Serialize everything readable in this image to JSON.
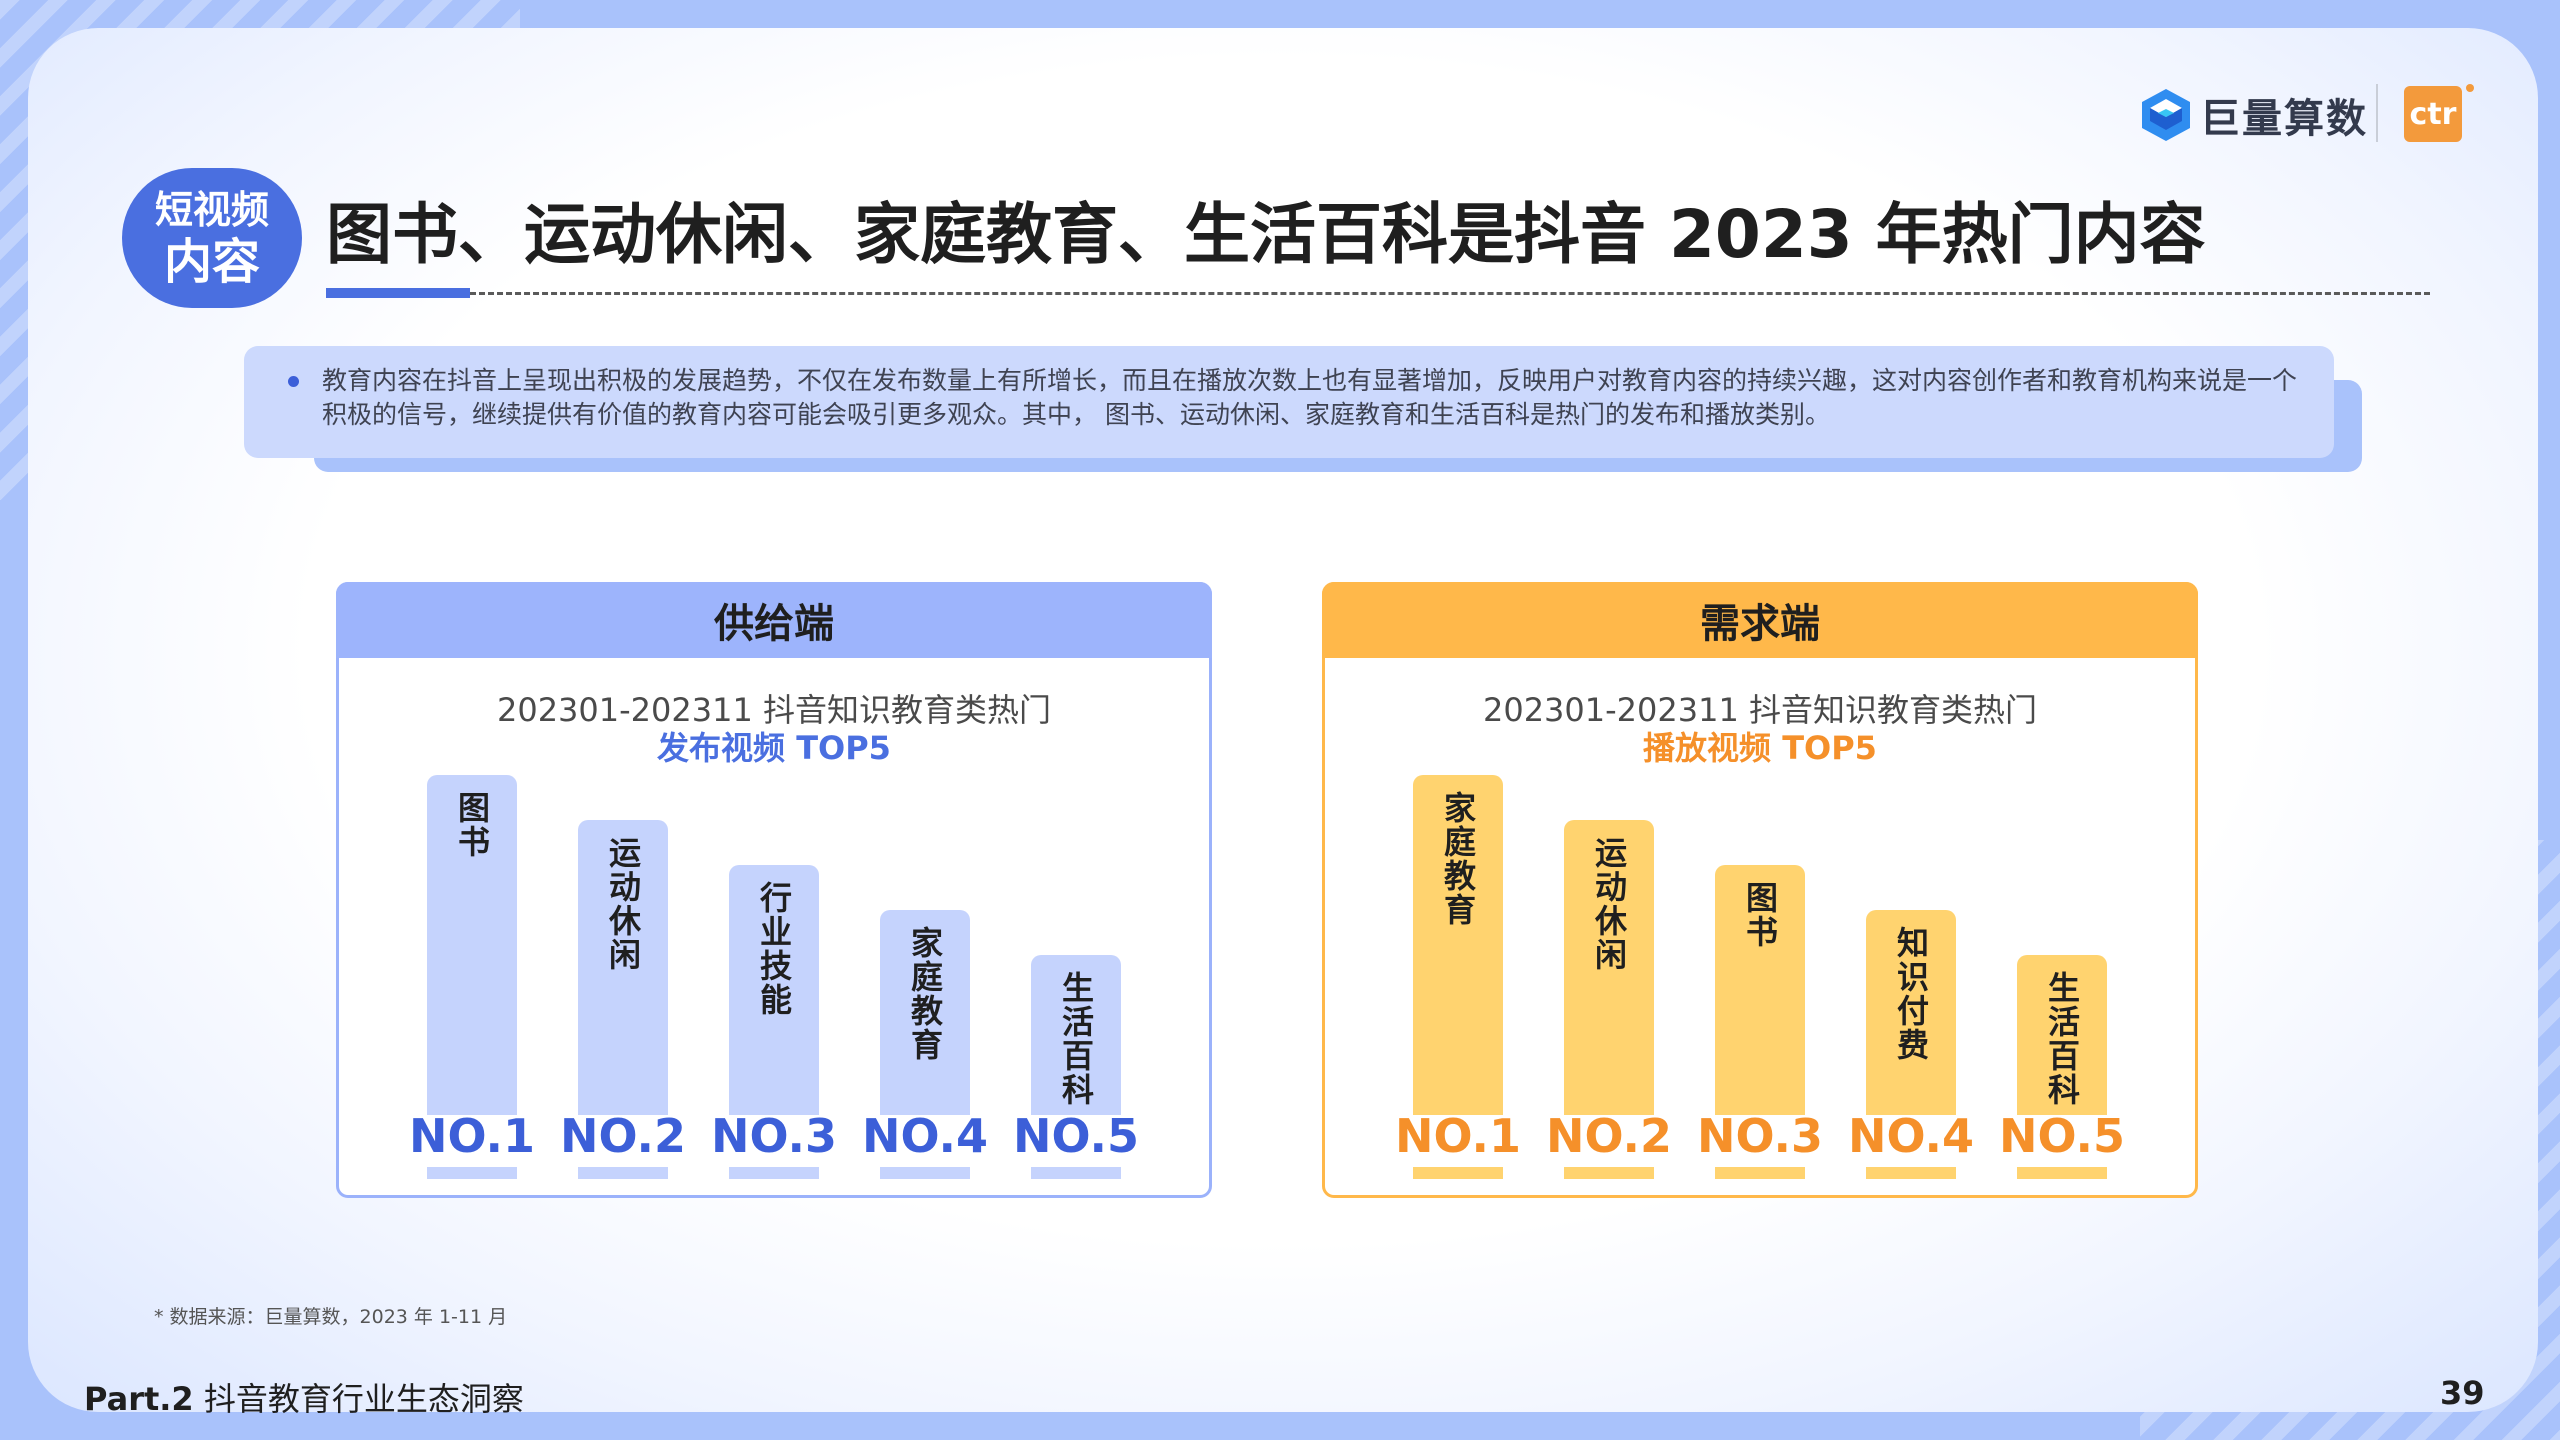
{
  "brand": {
    "name": "巨量算数",
    "partner": "ctr",
    "colors": {
      "primary": "#4a6fe0",
      "secondary": "#f5902a"
    }
  },
  "badge": {
    "line1": "短视频",
    "line2": "内容"
  },
  "title": "图书、运动休闲、家庭教育、生活百科是抖音 2023 年热门内容",
  "summary": "教育内容在抖音上呈现出积极的发展趋势，不仅在发布数量上有所增长，而且在播放次数上也有显著增加，反映用户对教育内容的持续兴趣，这对内容创作者和教育机构来说是一个积极的信号，继续提供有价值的教育内容可能会吸引更多观众。其中， 图书、运动休闲、家庭教育和生活百科是热门的发布和播放类别。",
  "chart_data": [
    {
      "type": "bar",
      "title": "供给端",
      "subtitle": "202301-202311 抖音知识教育类热门",
      "highlight": "发布视频 TOP5",
      "categories": [
        "图书",
        "运动休闲",
        "行业技能",
        "家庭教育",
        "生活百科"
      ],
      "ranks": [
        "NO.1",
        "NO.2",
        "NO.3",
        "NO.4",
        "NO.5"
      ],
      "values": [
        5,
        4,
        3,
        2,
        1
      ],
      "color": "#c5d3fd"
    },
    {
      "type": "bar",
      "title": "需求端",
      "subtitle": "202301-202311 抖音知识教育类热门",
      "highlight": "播放视频 TOP5",
      "categories": [
        "家庭教育",
        "运动休闲",
        "图书",
        "知识付费",
        "生活百科"
      ],
      "ranks": [
        "NO.1",
        "NO.2",
        "NO.3",
        "NO.4",
        "NO.5"
      ],
      "values": [
        5,
        4,
        3,
        2,
        1
      ],
      "color": "#ffd36f"
    }
  ],
  "source": "* 数据来源：巨量算数，2023 年 1-11 月",
  "footer": {
    "part": "Part.2",
    "section": "抖音教育行业生态洞察",
    "page": "39"
  }
}
